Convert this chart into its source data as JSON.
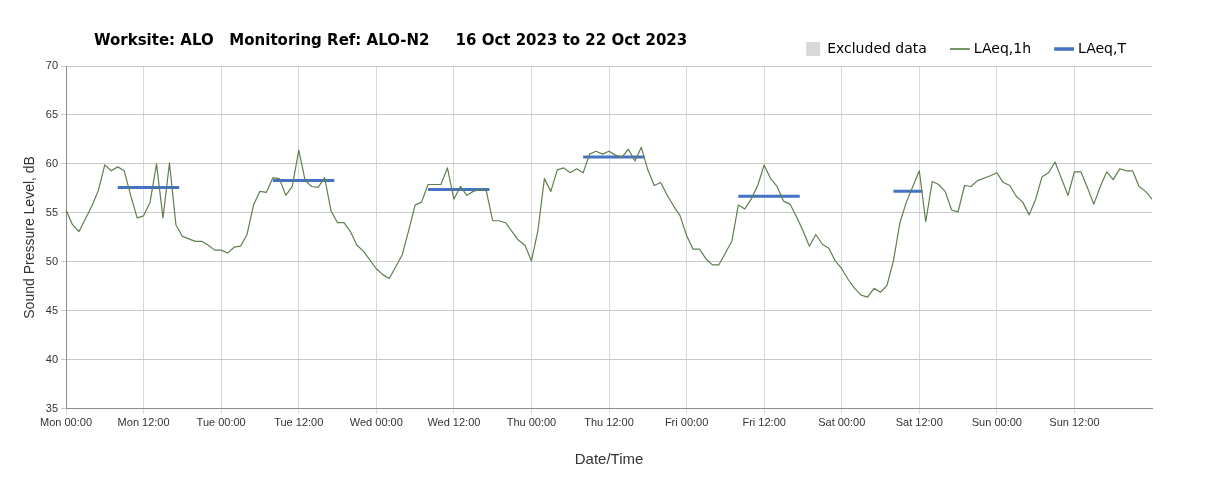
{
  "chart_data": {
    "type": "line",
    "title": "Worksite: ALO   Monitoring Ref: ALO-N2     16 Oct 2023 to 22 Oct 2023",
    "xlabel": "Date/Time",
    "ylabel": "Sound Pressure Level, dB",
    "xlim": [
      "2023-10-16T00:00",
      "2023-10-23T00:00"
    ],
    "xticks": [
      {
        "value": "2023-10-16T00:00",
        "label": "Mon 00:00"
      },
      {
        "value": "2023-10-16T12:00",
        "label": "Mon 12:00"
      },
      {
        "value": "2023-10-17T00:00",
        "label": "Tue 00:00"
      },
      {
        "value": "2023-10-17T12:00",
        "label": "Tue 12:00"
      },
      {
        "value": "2023-10-18T00:00",
        "label": "Wed 00:00"
      },
      {
        "value": "2023-10-18T12:00",
        "label": "Wed 12:00"
      },
      {
        "value": "2023-10-19T00:00",
        "label": "Thu 00:00"
      },
      {
        "value": "2023-10-19T12:00",
        "label": "Thu 12:00"
      },
      {
        "value": "2023-10-20T00:00",
        "label": "Fri 00:00"
      },
      {
        "value": "2023-10-20T12:00",
        "label": "Fri 12:00"
      },
      {
        "value": "2023-10-21T00:00",
        "label": "Sat 00:00"
      },
      {
        "value": "2023-10-21T12:00",
        "label": "Sat 12:00"
      },
      {
        "value": "2023-10-22T00:00",
        "label": "Sun 00:00"
      },
      {
        "value": "2023-10-22T12:00",
        "label": "Sun 12:00"
      }
    ],
    "ylim": [
      35,
      70
    ],
    "yticks": [
      35,
      40,
      45,
      50,
      55,
      60,
      65,
      70
    ],
    "grid": true,
    "legend": "top right",
    "marker": "none",
    "series": [
      {
        "name": "Excluded data",
        "type": "bar",
        "color": "#d9d9d9"
      },
      {
        "name": "LAeq,1h",
        "color": "#5f7f4f",
        "x": [
          "2023-10-16T00:00",
          "2023-10-16T01:00",
          "2023-10-16T02:00",
          "2023-10-16T04:00",
          "2023-10-16T05:00",
          "2023-10-16T06:00",
          "2023-10-16T07:00",
          "2023-10-16T08:00",
          "2023-10-16T09:00",
          "2023-10-16T10:00",
          "2023-10-16T11:00",
          "2023-10-16T12:00",
          "2023-10-16T13:00",
          "2023-10-16T14:00",
          "2023-10-16T15:00",
          "2023-10-16T16:00",
          "2023-10-16T17:00",
          "2023-10-16T18:00",
          "2023-10-16T20:00",
          "2023-10-16T21:00",
          "2023-10-16T22:00",
          "2023-10-16T23:00",
          "2023-10-17T00:00",
          "2023-10-17T01:00",
          "2023-10-17T02:00",
          "2023-10-17T03:00",
          "2023-10-17T04:00",
          "2023-10-17T05:00",
          "2023-10-17T06:00",
          "2023-10-17T07:00",
          "2023-10-17T08:00",
          "2023-10-17T09:00",
          "2023-10-17T10:00",
          "2023-10-17T11:00",
          "2023-10-17T12:00",
          "2023-10-17T13:00",
          "2023-10-17T14:00",
          "2023-10-17T15:00",
          "2023-10-17T16:00",
          "2023-10-17T17:00",
          "2023-10-17T18:00",
          "2023-10-17T19:00",
          "2023-10-17T20:00",
          "2023-10-17T21:00",
          "2023-10-17T22:00",
          "2023-10-17T23:00",
          "2023-10-18T00:00",
          "2023-10-18T01:00",
          "2023-10-18T02:00",
          "2023-10-18T03:00",
          "2023-10-18T04:00",
          "2023-10-18T05:00",
          "2023-10-18T06:00",
          "2023-10-18T07:00",
          "2023-10-18T08:00",
          "2023-10-18T09:00",
          "2023-10-18T10:00",
          "2023-10-18T11:00",
          "2023-10-18T12:00",
          "2023-10-18T13:00",
          "2023-10-18T14:00",
          "2023-10-18T15:00",
          "2023-10-18T16:00",
          "2023-10-18T17:00",
          "2023-10-18T18:00",
          "2023-10-18T19:00",
          "2023-10-18T20:00",
          "2023-10-18T21:00",
          "2023-10-18T22:00",
          "2023-10-18T23:00",
          "2023-10-19T00:00",
          "2023-10-19T01:00",
          "2023-10-19T02:00",
          "2023-10-19T03:00",
          "2023-10-19T04:00",
          "2023-10-19T05:00",
          "2023-10-19T06:00",
          "2023-10-19T07:00",
          "2023-10-19T08:00",
          "2023-10-19T09:00",
          "2023-10-19T10:00",
          "2023-10-19T11:00",
          "2023-10-19T12:00",
          "2023-10-19T13:00",
          "2023-10-19T14:00",
          "2023-10-19T15:00",
          "2023-10-19T16:00",
          "2023-10-19T17:00",
          "2023-10-19T18:00",
          "2023-10-19T19:00",
          "2023-10-19T20:00",
          "2023-10-19T21:00",
          "2023-10-19T22:00",
          "2023-10-19T23:00",
          "2023-10-20T00:00",
          "2023-10-20T01:00",
          "2023-10-20T02:00",
          "2023-10-20T03:00",
          "2023-10-20T04:00",
          "2023-10-20T05:00",
          "2023-10-20T06:00",
          "2023-10-20T07:00",
          "2023-10-20T08:00",
          "2023-10-20T09:00",
          "2023-10-20T10:00",
          "2023-10-20T11:00",
          "2023-10-20T12:00",
          "2023-10-20T13:00",
          "2023-10-20T14:00",
          "2023-10-20T15:00",
          "2023-10-20T16:00",
          "2023-10-20T17:00",
          "2023-10-20T18:00",
          "2023-10-20T19:00",
          "2023-10-20T20:00",
          "2023-10-20T21:00",
          "2023-10-20T22:00",
          "2023-10-20T23:00",
          "2023-10-21T00:00",
          "2023-10-21T01:00",
          "2023-10-21T02:00",
          "2023-10-21T03:00",
          "2023-10-21T04:00",
          "2023-10-21T05:00",
          "2023-10-21T06:00",
          "2023-10-21T07:00",
          "2023-10-21T08:00",
          "2023-10-21T09:00",
          "2023-10-21T10:00",
          "2023-10-21T12:00",
          "2023-10-21T13:00",
          "2023-10-21T14:00",
          "2023-10-21T15:00",
          "2023-10-21T16:00",
          "2023-10-21T17:00",
          "2023-10-21T18:00",
          "2023-10-21T19:00",
          "2023-10-21T20:00",
          "2023-10-21T21:00",
          "2023-10-21T23:00",
          "2023-10-22T00:00",
          "2023-10-22T01:00",
          "2023-10-22T02:00",
          "2023-10-22T03:00",
          "2023-10-22T04:00",
          "2023-10-22T05:00",
          "2023-10-22T06:00",
          "2023-10-22T07:00",
          "2023-10-22T08:00",
          "2023-10-22T09:00",
          "2023-10-22T10:00",
          "2023-10-22T11:00",
          "2023-10-22T12:00",
          "2023-10-22T13:00",
          "2023-10-22T14:00",
          "2023-10-22T15:00",
          "2023-10-22T16:00",
          "2023-10-22T17:00",
          "2023-10-22T18:00",
          "2023-10-22T19:00",
          "2023-10-22T20:00",
          "2023-10-22T21:00",
          "2023-10-22T22:00",
          "2023-10-22T23:00",
          "2023-10-23T00:00"
        ],
        "values": [
          55.3,
          53.8,
          53.1,
          55.7,
          57.3,
          59.9,
          59.3,
          59.7,
          59.3,
          56.8,
          54.5,
          54.7,
          56.1,
          60.0,
          54.5,
          60.1,
          53.8,
          52.6,
          52.1,
          52.1,
          51.7,
          51.2,
          51.2,
          50.9,
          51.5,
          51.6,
          52.8,
          55.8,
          57.2,
          57.1,
          58.6,
          58.5,
          56.8,
          57.7,
          61.4,
          58.3,
          57.7,
          57.6,
          58.6,
          55.2,
          54.0,
          54.0,
          53.1,
          51.7,
          51.1,
          50.2,
          49.3,
          48.7,
          48.3,
          49.5,
          50.7,
          53.2,
          55.8,
          56.1,
          57.9,
          57.9,
          57.9,
          59.6,
          56.4,
          57.7,
          56.8,
          57.2,
          57.4,
          57.3,
          54.2,
          54.2,
          54.0,
          53.1,
          52.2,
          51.7,
          50.1,
          53.2,
          58.5,
          57.2,
          59.4,
          59.6,
          59.1,
          59.5,
          59.1,
          61.0,
          61.3,
          61.0,
          61.3,
          60.9,
          60.7,
          61.5,
          60.3,
          61.7,
          59.4,
          57.8,
          58.1,
          56.8,
          55.7,
          54.7,
          52.7,
          51.3,
          51.3,
          50.3,
          49.7,
          49.7,
          50.9,
          52.1,
          55.8,
          55.4,
          56.4,
          57.8,
          59.9,
          58.5,
          57.7,
          56.2,
          55.9,
          54.6,
          53.2,
          51.6,
          52.8,
          51.8,
          51.4,
          50.1,
          49.3,
          48.2,
          47.3,
          46.6,
          46.4,
          47.3,
          46.9,
          47.6,
          50.1,
          54.0,
          56.1,
          59.3,
          54.1,
          58.2,
          57.9,
          57.2,
          55.3,
          55.1,
          57.8,
          57.7,
          58.3,
          58.8,
          59.1,
          58.1,
          57.8,
          56.7,
          56.1,
          54.8,
          56.4,
          58.7,
          59.1,
          60.2,
          58.5,
          56.8,
          59.2,
          59.2,
          57.6,
          55.9,
          57.7,
          59.2,
          58.4,
          59.5,
          59.3,
          59.3,
          57.7,
          57.2,
          56.4
        ]
      },
      {
        "name": "LAeq,T",
        "color": "#4472c4",
        "x": [
          "2023-10-16T08:00",
          "2023-10-16T17:30",
          "2023-10-16T18:00",
          "2023-10-17T08:00",
          "2023-10-17T17:30",
          "2023-10-17T18:00",
          "2023-10-18T08:00",
          "2023-10-18T17:30",
          "2023-10-18T18:00",
          "2023-10-19T08:00",
          "2023-10-19T17:30",
          "2023-10-19T18:00",
          "2023-10-20T08:00",
          "2023-10-20T17:30",
          "2023-10-20T18:00",
          "2023-10-21T08:00",
          "2023-10-21T12:30"
        ],
        "values": [
          57.6,
          57.6,
          null,
          58.3,
          58.3,
          null,
          57.4,
          57.4,
          null,
          60.7,
          60.7,
          null,
          56.7,
          56.7,
          null,
          57.2,
          57.2
        ]
      }
    ]
  }
}
